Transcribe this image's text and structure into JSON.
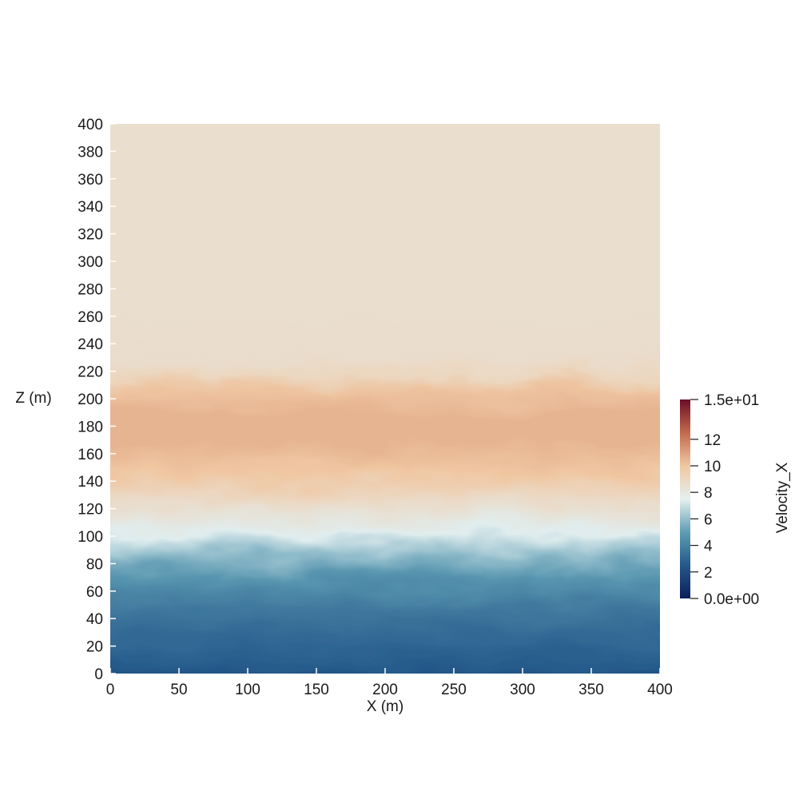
{
  "chart_data": {
    "type": "heatmap",
    "xlabel": "X (m)",
    "ylabel": "Z (m)",
    "xlim": [
      0,
      400
    ],
    "ylim": [
      0,
      400
    ],
    "x_ticks": [
      0,
      50,
      100,
      150,
      200,
      250,
      300,
      350,
      400
    ],
    "y_ticks": [
      0,
      20,
      40,
      60,
      80,
      100,
      120,
      140,
      160,
      180,
      200,
      220,
      240,
      260,
      280,
      300,
      320,
      340,
      360,
      380,
      400
    ],
    "colorbar": {
      "title": "Velocity_X",
      "range": [
        0,
        15
      ],
      "min_label": "0.0e+00",
      "max_label": "1.5e+01",
      "ticks": [
        2,
        4,
        6,
        8,
        10,
        12
      ],
      "colors": [
        "#0b1f5c",
        "#24588a",
        "#5e9db4",
        "#e5f0f0",
        "#f0c7a2",
        "#c26a4d",
        "#6b0e26"
      ]
    },
    "vertical_profile": {
      "z": [
        0,
        5,
        20,
        40,
        60,
        80,
        95,
        110,
        130,
        150,
        170,
        190,
        205,
        215,
        225,
        260,
        320,
        400
      ],
      "velocity_x": [
        1.2,
        2.0,
        2.6,
        3.1,
        3.7,
        4.7,
        5.9,
        7.4,
        8.7,
        10.0,
        10.5,
        10.5,
        10.1,
        9.1,
        8.7,
        8.6,
        8.6,
        8.6
      ]
    }
  }
}
